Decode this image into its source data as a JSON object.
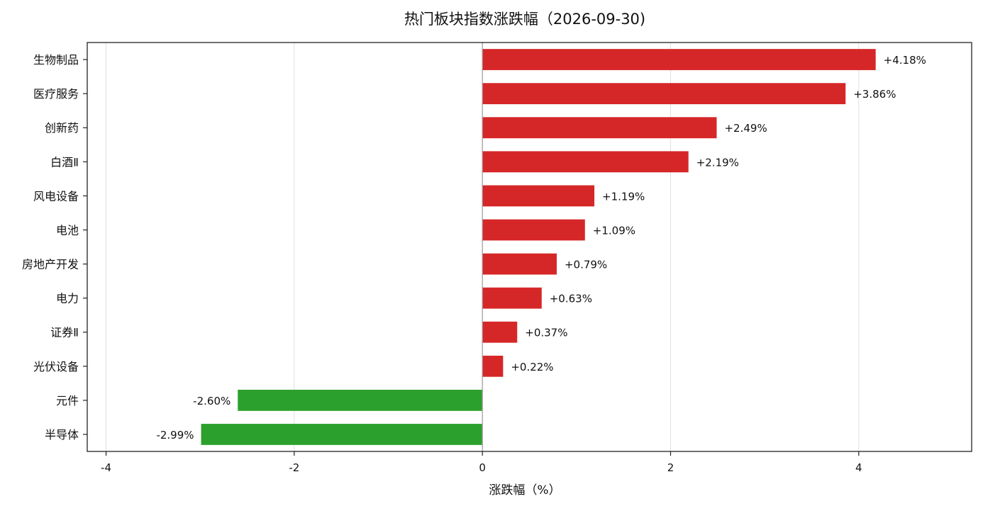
{
  "chart_data": {
    "type": "bar",
    "orientation": "horizontal",
    "title": "热门板块指数涨跌幅（2026-09-30)",
    "xlabel": "涨跌幅（%）",
    "ylabel": "",
    "xlim": [
      -4.2,
      5.2
    ],
    "xticks": [
      -4,
      -2,
      0,
      2,
      4
    ],
    "grid": "x",
    "categories": [
      "生物制品",
      "医疗服务",
      "创新药",
      "白酒Ⅱ",
      "风电设备",
      "电池",
      "房地产开发",
      "电力",
      "证券Ⅱ",
      "光伏设备",
      "元件",
      "半导体"
    ],
    "values": [
      4.18,
      3.86,
      2.49,
      2.19,
      1.19,
      1.09,
      0.79,
      0.63,
      0.37,
      0.22,
      -2.6,
      -2.99
    ],
    "labels": [
      "+4.18%",
      "+3.86%",
      "+2.49%",
      "+2.19%",
      "+1.19%",
      "+1.09%",
      "+0.79%",
      "+0.63%",
      "+0.37%",
      "+0.22%",
      "-2.60%",
      "-2.99%"
    ],
    "colors": {
      "positive": "#d62728",
      "negative": "#2ca02c",
      "zero_line": "#999999",
      "grid": "#e0e0e0",
      "axes": "#222222"
    }
  }
}
